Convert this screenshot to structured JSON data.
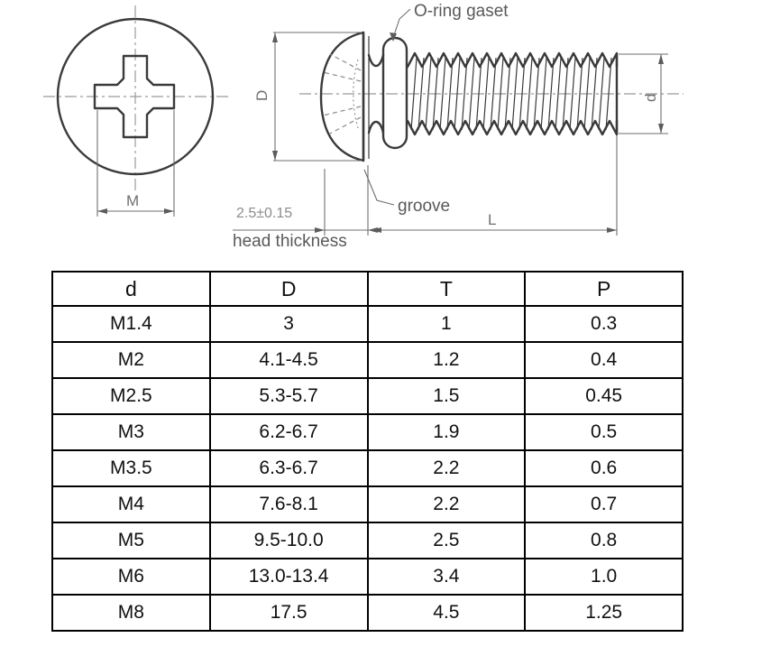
{
  "drawing": {
    "labels": {
      "o_ring": "O-ring gaset",
      "groove": "groove",
      "head_thickness_value": "2.5±0.15",
      "head_thickness": "head thickness",
      "dim_head_diameter": "D",
      "dim_thread_diameter": "d",
      "dim_recess": "M",
      "dim_length": "L"
    },
    "colors": {
      "outline": "#3a3a3a",
      "dimension": "#6f6f6f",
      "label": "#595959",
      "centerline": "#9b9b9b"
    }
  },
  "table": {
    "headers": [
      "d",
      "D",
      "T",
      "P"
    ],
    "rows": [
      [
        "M1.4",
        "3",
        "1",
        "0.3"
      ],
      [
        "M2",
        "4.1-4.5",
        "1.2",
        "0.4"
      ],
      [
        "M2.5",
        "5.3-5.7",
        "1.5",
        "0.45"
      ],
      [
        "M3",
        "6.2-6.7",
        "1.9",
        "0.5"
      ],
      [
        "M3.5",
        "6.3-6.7",
        "2.2",
        "0.6"
      ],
      [
        "M4",
        "7.6-8.1",
        "2.2",
        "0.7"
      ],
      [
        "M5",
        "9.5-10.0",
        "2.5",
        "0.8"
      ],
      [
        "M6",
        "13.0-13.4",
        "3.4",
        "1.0"
      ],
      [
        "M8",
        "17.5",
        "4.5",
        "1.25"
      ]
    ]
  }
}
